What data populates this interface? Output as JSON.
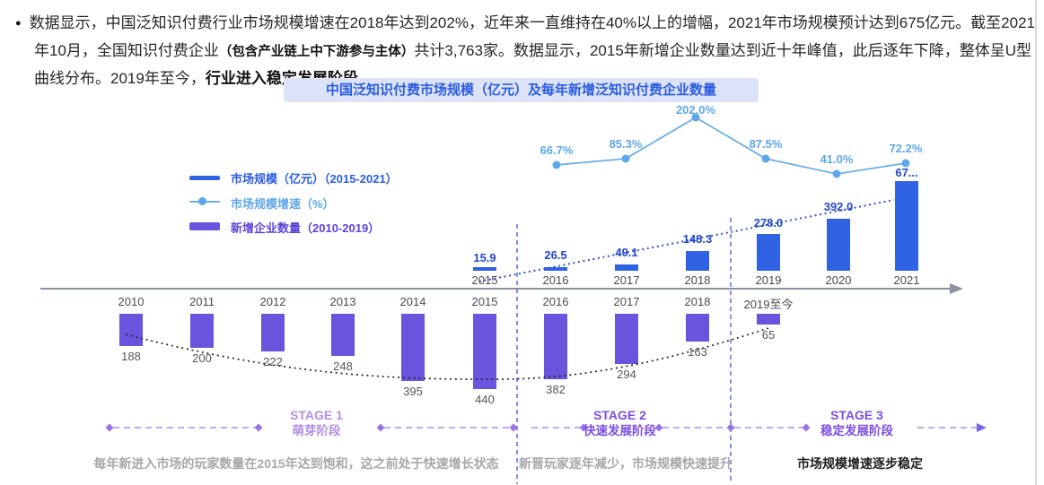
{
  "intro": {
    "bullet": "●",
    "text_part1": "数据显示，中国泛知识付费行业市场规模增速在2018年达到202%，近年来一直维持在40%以上的增幅，2021年市场规模预计达到675亿元。截至2021年10月，全国知识付费企业",
    "text_part2": "（包含产业链上中下游参与主体）",
    "text_part3": "共计3,763家。数据显示，2015年新增企业数量达到近十年峰值，此后逐年下降，整体呈U型曲线分布。2019年至今，",
    "text_part4": "行业进入稳定发展阶段。"
  },
  "chart_data": {
    "type": "combo",
    "title": "中国泛知识付费市场规模（亿元）及每年新增泛知识付费企业数量",
    "x_axis_top": [
      "2015",
      "2016",
      "2017",
      "2018",
      "2019",
      "2020",
      "2021"
    ],
    "x_axis_bottom": [
      "2010",
      "2011",
      "2012",
      "2013",
      "2014",
      "2015",
      "2016",
      "2017",
      "2018",
      "2019至今"
    ],
    "legend_position": "top-left",
    "grid": false,
    "series": [
      {
        "name": "市场规模（亿元）（2015-2021）",
        "type": "bar",
        "color": "#2f63e3",
        "categories": [
          "2015",
          "2016",
          "2017",
          "2018",
          "2019",
          "2020",
          "2021"
        ],
        "values": [
          15.9,
          26.5,
          49.1,
          148.3,
          278.0,
          392.0,
          675
        ],
        "labels": [
          "15.9",
          "26.5",
          "49.1",
          "148.3",
          "278.0",
          "392.0",
          "67..."
        ]
      },
      {
        "name": "市场规模增速（%）",
        "type": "line",
        "color": "#5ea7e8",
        "categories": [
          "2016",
          "2017",
          "2018",
          "2019",
          "2020",
          "2021"
        ],
        "values": [
          66.7,
          85.3,
          202.0,
          87.5,
          41.0,
          72.2
        ],
        "labels": [
          "66.7%",
          "85.3%",
          "202.0%",
          "87.5%",
          "41.0%",
          "72.2%"
        ]
      },
      {
        "name": "新增企业数量（2010-2019）",
        "type": "bar",
        "color": "#6a53dd",
        "categories": [
          "2010",
          "2011",
          "2012",
          "2013",
          "2014",
          "2015",
          "2016",
          "2017",
          "2018",
          "2019至今"
        ],
        "values": [
          188,
          200,
          222,
          248,
          395,
          440,
          382,
          294,
          163,
          65
        ],
        "labels": [
          "188",
          "200",
          "222",
          "248",
          "395",
          "440",
          "382",
          "294",
          "163",
          "65"
        ]
      }
    ],
    "stages": [
      {
        "stage": "STAGE 1",
        "phase": "萌芽阶段",
        "desc": "每年新进入市场的玩家数量在2015年达到饱和，这之前处于快速增长状态"
      },
      {
        "stage": "STAGE 2",
        "phase": "快速发展阶段",
        "desc": "新晋玩家逐年减少，市场规模快速提升"
      },
      {
        "stage": "STAGE 3",
        "phase": "稳定发展阶段",
        "desc": "市场规模增速逐步稳定"
      }
    ]
  }
}
